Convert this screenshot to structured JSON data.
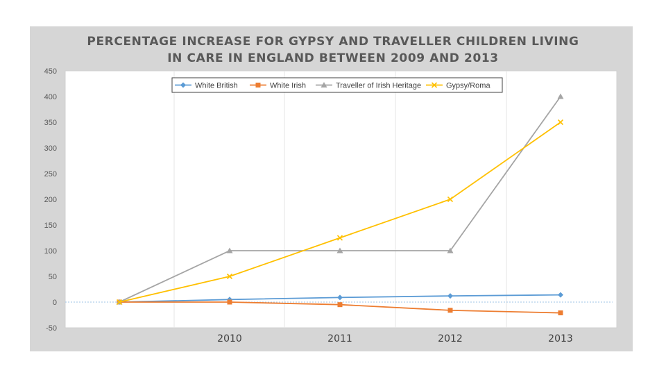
{
  "chart_data": {
    "type": "line",
    "title": [
      "PERCENTAGE INCREASE FOR GYPSY AND TRAVELLER CHILDREN LIVING",
      "IN CARE IN ENGLAND BETWEEN 2009 AND 2013"
    ],
    "xlabel": "",
    "ylabel": "",
    "categories": [
      "",
      "2010",
      "2011",
      "2012",
      "2013"
    ],
    "ylim": [
      -50,
      450
    ],
    "yticks": [
      -50,
      0,
      50,
      100,
      150,
      200,
      250,
      300,
      350,
      400,
      450
    ],
    "legend_position": "top",
    "grid": "vertical",
    "series": [
      {
        "name": "White British",
        "color": "#5b9bd5",
        "marker": "diamond",
        "values": [
          0,
          5,
          9,
          12,
          14
        ]
      },
      {
        "name": "White Irish",
        "color": "#ed7d31",
        "marker": "square",
        "values": [
          0,
          0,
          -5,
          -16,
          -21
        ]
      },
      {
        "name": "Traveller of Irish Heritage",
        "color": "#a5a5a5",
        "marker": "triangle",
        "values": [
          0,
          100,
          100,
          100,
          400
        ]
      },
      {
        "name": "Gypsy/Roma",
        "color": "#ffc000",
        "marker": "x",
        "values": [
          0,
          50,
          125,
          200,
          350
        ]
      }
    ]
  }
}
